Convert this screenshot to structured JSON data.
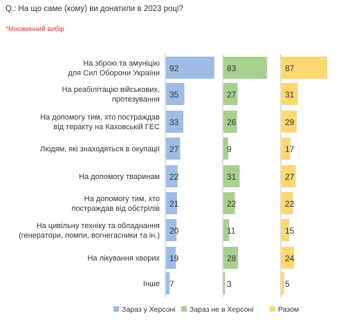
{
  "question": "Q.: На що саме (кому) ви донатили в 2023 році?",
  "note": "*Множинний вибір",
  "colors": {
    "series_1": "#9dbde6",
    "series_2": "#a9d18e",
    "series_3": "#fcd872",
    "axis_line": "#bfbfbf",
    "text": "#333333",
    "note": "#e8363b"
  },
  "chart_data": {
    "type": "bar",
    "orientation": "horizontal",
    "layout": "small-multiples",
    "categories": [
      [
        "На зброю та амуніцію",
        "для Сил Оборони України"
      ],
      [
        "На реабілітацію військових,",
        "протезування"
      ],
      [
        "На допомогу тим, хто постраждав",
        "від теракту на Каховській ГЕС"
      ],
      [
        "Людям, які знаходяться в окупації"
      ],
      [
        "На допомогу тваринам"
      ],
      [
        "На допомогу тим, хто",
        "постраждав від обстрілів"
      ],
      [
        "На цивільну техніку та обладнання",
        "(генератори, помпи, вогнегасники та ін.)"
      ],
      [
        "На лікування хворих"
      ],
      [
        "Інше"
      ]
    ],
    "series": [
      {
        "name": "Зараз у Херсоні",
        "values": [
          92,
          35,
          33,
          27,
          22,
          21,
          20,
          19,
          7
        ]
      },
      {
        "name": "Зараз не в Херсоні",
        "values": [
          83,
          27,
          26,
          9,
          31,
          22,
          11,
          28,
          3
        ]
      },
      {
        "name": "Разом",
        "values": [
          87,
          31,
          29,
          17,
          27,
          22,
          15,
          24,
          5
        ]
      }
    ],
    "xlim": [
      0,
      100
    ],
    "data_labels": true,
    "legend": "bottom"
  }
}
